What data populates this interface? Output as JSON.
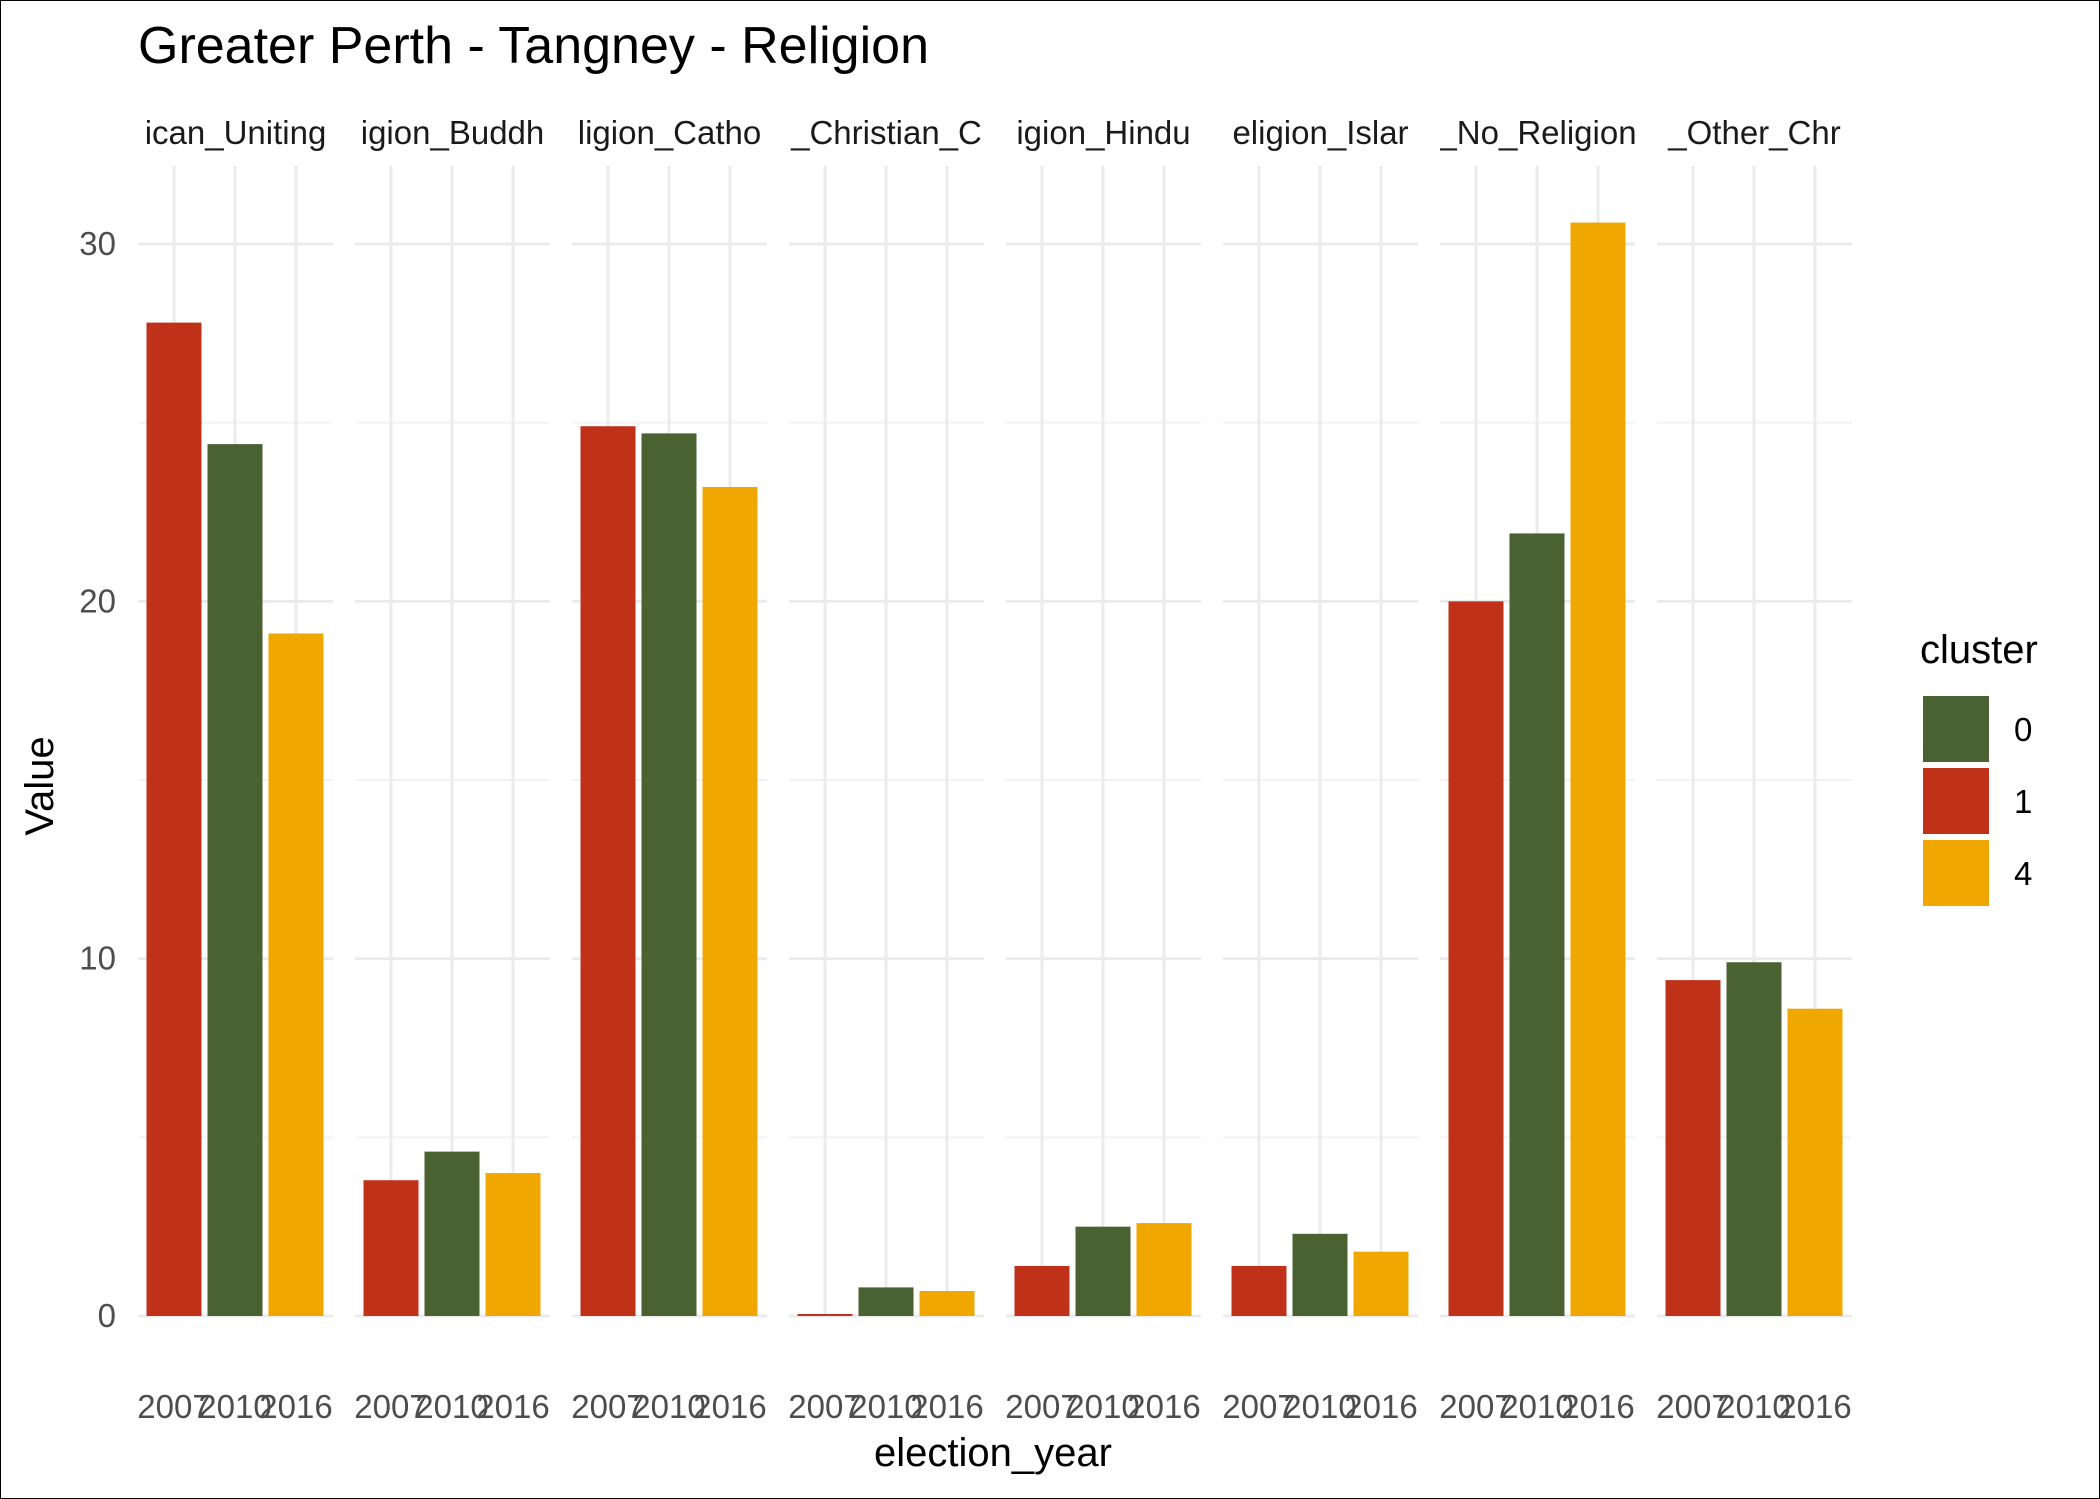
{
  "chart_data": {
    "type": "bar",
    "title": "Greater Perth - Tangney - Religion",
    "xlabel": "election_year",
    "ylabel": "Value",
    "ylim": [
      0,
      31
    ],
    "y_ticks": [
      0,
      10,
      20,
      30
    ],
    "x_tick_labels": [
      "2007",
      "2010",
      "2016"
    ],
    "grid": true,
    "legend": {
      "title": "cluster",
      "position": "right",
      "entries": [
        "0",
        "1",
        "4"
      ]
    },
    "colors": {
      "0": "#4a6132",
      "1": "#c0311a",
      "4": "#f0a800"
    },
    "panels": [
      {
        "label": "ican_Uniting",
        "bars": [
          {
            "year": "2007",
            "cluster": "1",
            "value": 27.8
          },
          {
            "year": "2010",
            "cluster": "0",
            "value": 24.4
          },
          {
            "year": "2016",
            "cluster": "4",
            "value": 19.1
          }
        ]
      },
      {
        "label": "igion_Buddh",
        "bars": [
          {
            "year": "2007",
            "cluster": "1",
            "value": 3.8
          },
          {
            "year": "2010",
            "cluster": "0",
            "value": 4.6
          },
          {
            "year": "2016",
            "cluster": "4",
            "value": 4.0
          }
        ]
      },
      {
        "label": "ligion_Catho",
        "bars": [
          {
            "year": "2007",
            "cluster": "1",
            "value": 24.9
          },
          {
            "year": "2010",
            "cluster": "0",
            "value": 24.7
          },
          {
            "year": "2016",
            "cluster": "4",
            "value": 23.2
          }
        ]
      },
      {
        "label": "_Christian_C",
        "bars": [
          {
            "year": "2007",
            "cluster": "1",
            "value": 0.05
          },
          {
            "year": "2010",
            "cluster": "0",
            "value": 0.8
          },
          {
            "year": "2016",
            "cluster": "4",
            "value": 0.7
          }
        ]
      },
      {
        "label": "igion_Hindu",
        "bars": [
          {
            "year": "2007",
            "cluster": "1",
            "value": 1.4
          },
          {
            "year": "2010",
            "cluster": "0",
            "value": 2.5
          },
          {
            "year": "2016",
            "cluster": "4",
            "value": 2.6
          }
        ]
      },
      {
        "label": "eligion_Islar",
        "bars": [
          {
            "year": "2007",
            "cluster": "1",
            "value": 1.4
          },
          {
            "year": "2010",
            "cluster": "0",
            "value": 2.3
          },
          {
            "year": "2016",
            "cluster": "4",
            "value": 1.8
          }
        ]
      },
      {
        "label": "_No_Religion",
        "bars": [
          {
            "year": "2007",
            "cluster": "1",
            "value": 20.0
          },
          {
            "year": "2010",
            "cluster": "0",
            "value": 21.9
          },
          {
            "year": "2016",
            "cluster": "4",
            "value": 30.6
          }
        ]
      },
      {
        "label": "_Other_Chr",
        "bars": [
          {
            "year": "2007",
            "cluster": "1",
            "value": 9.4
          },
          {
            "year": "2010",
            "cluster": "0",
            "value": 9.9
          },
          {
            "year": "2016",
            "cluster": "4",
            "value": 8.6
          }
        ]
      }
    ]
  }
}
